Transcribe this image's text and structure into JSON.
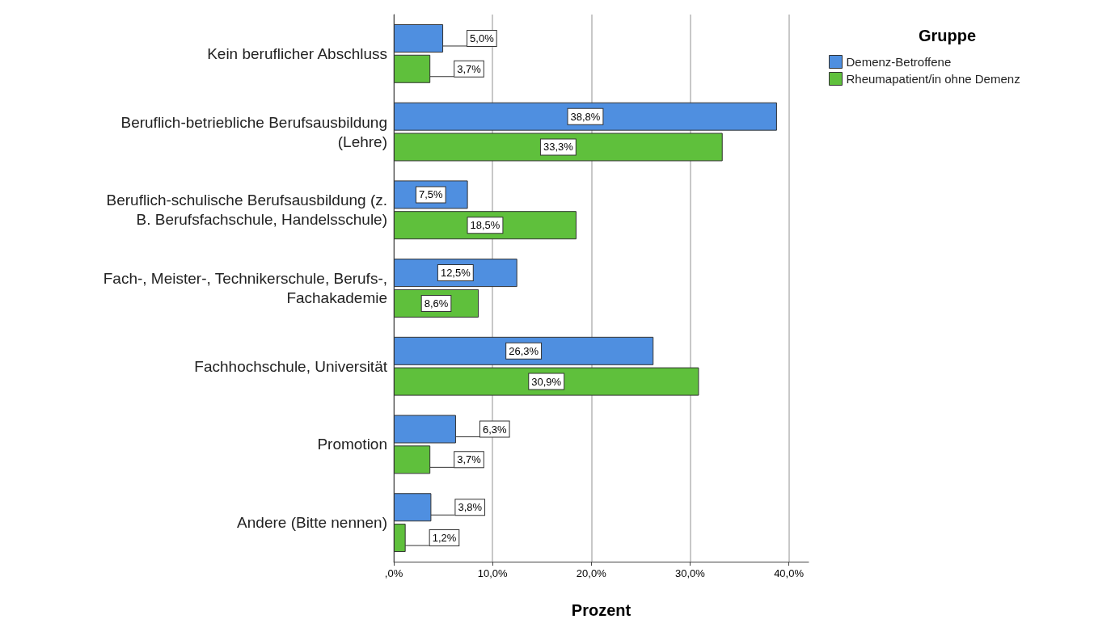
{
  "chart_data": {
    "type": "bar",
    "orientation": "horizontal",
    "xlabel": "Prozent",
    "legend_title": "Gruppe",
    "legend": "top right",
    "grid": "x",
    "categories": [
      "Kein beruflicher Abschluss",
      "Beruflich-betriebliche Berufsausbildung\n(Lehre)",
      "Beruflich-schulische Berufsausbildung (z.\nB. Berufsfachschule, Handelsschule)",
      "Fach-, Meister-, Technikerschule, Berufs-,\nFachakademie",
      "Fachhochschule, Universität",
      "Promotion",
      "Andere (Bitte nennen)"
    ],
    "series": [
      {
        "name": "Demenz-Betroffene",
        "color": "#4f8fe0",
        "values": [
          5.0,
          38.8,
          7.5,
          12.5,
          26.3,
          6.3,
          3.8
        ],
        "value_labels": [
          "5,0%",
          "38,8%",
          "7,5%",
          "12,5%",
          "26,3%",
          "6,3%",
          "3,8%"
        ]
      },
      {
        "name": "Rheumapatient/in ohne Demenz",
        "color": "#5fc03c",
        "values": [
          3.7,
          33.3,
          18.5,
          8.6,
          30.9,
          3.7,
          1.2
        ],
        "value_labels": [
          "3,7%",
          "33,3%",
          "18,5%",
          "8,6%",
          "30,9%",
          "3,7%",
          "1,2%"
        ]
      }
    ],
    "xlim": [
      0,
      42
    ],
    "xticks": [
      {
        "value": 0,
        "label": ",0%"
      },
      {
        "value": 10,
        "label": "10,0%"
      },
      {
        "value": 20,
        "label": "20,0%"
      },
      {
        "value": 30,
        "label": "30,0%"
      },
      {
        "value": 40,
        "label": "40,0%"
      }
    ]
  }
}
